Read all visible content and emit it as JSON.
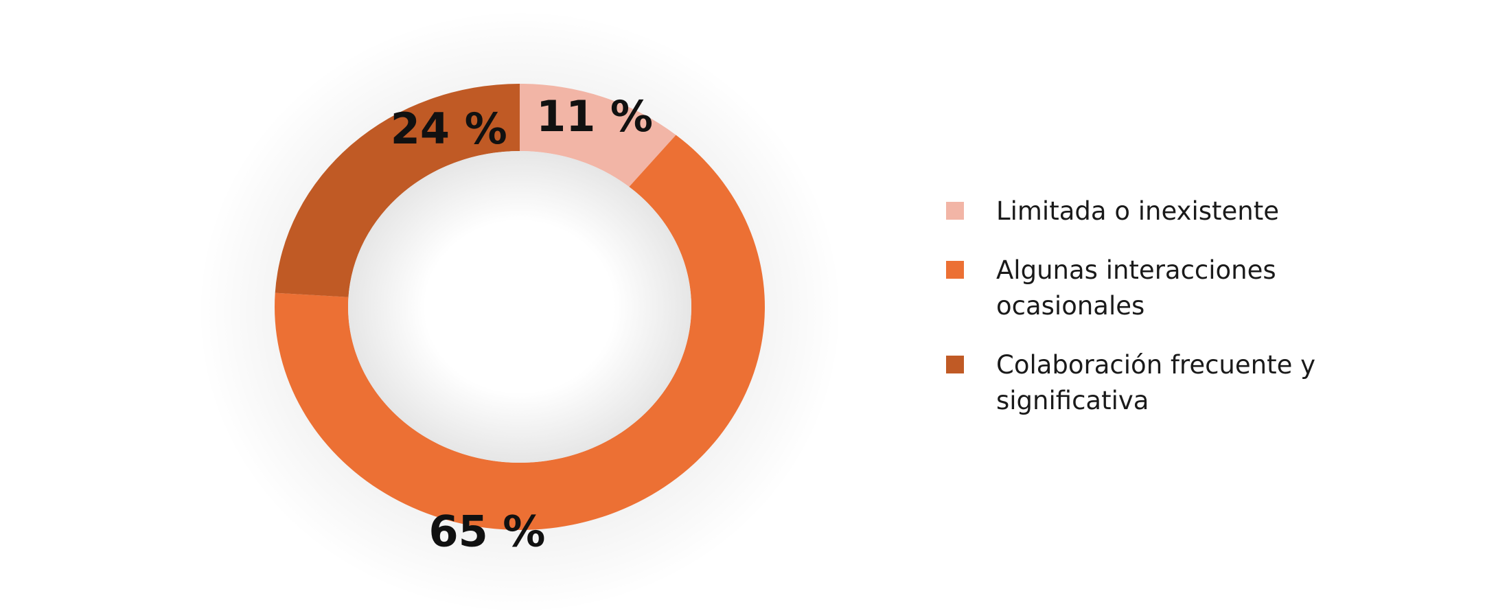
{
  "chart_data": {
    "type": "pie",
    "donut": true,
    "legend_position": "right",
    "slices": [
      {
        "label": "Limitada o inexistente",
        "value": 11,
        "value_label": "11 %",
        "color": "#F2B5A6"
      },
      {
        "label": "Algunas interacciones ocasionales",
        "value": 65,
        "value_label": "65 %",
        "color": "#EC7034"
      },
      {
        "label": "Colaboración frecuente y significativa",
        "value": 24,
        "value_label": "24 %",
        "color": "#C05A25"
      }
    ]
  },
  "legend": {
    "items": [
      {
        "label": "Limitada o inexistente",
        "color": "#F2B5A6"
      },
      {
        "label": "Algunas interacciones ocasionales",
        "color": "#EC7034"
      },
      {
        "label": "Colaboración frecuente y significativa",
        "color": "#C05A25"
      }
    ]
  }
}
